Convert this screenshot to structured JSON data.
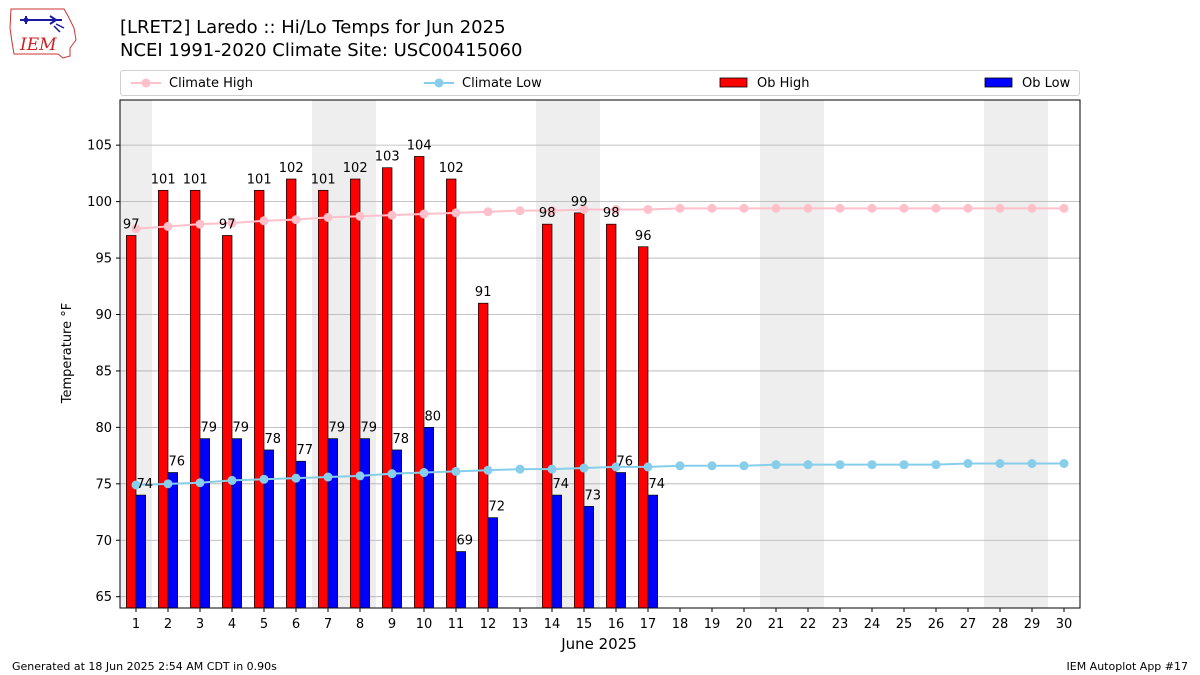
{
  "header": {
    "title": "[LRET2] Laredo :: Hi/Lo Temps for Jun 2025",
    "subtitle": "NCEI 1991-2020 Climate Site: USC00415060",
    "logo_text": "IEM"
  },
  "footer": {
    "left": "Generated at 18 Jun 2025 2:54 AM CDT in 0.90s",
    "right": "IEM Autoplot App #17"
  },
  "colors": {
    "ob_high": "#ff0000",
    "ob_low": "#0000ff",
    "climate_high": "#ffc0cb",
    "climate_low": "#87ceeb",
    "weekend_band": "#eeeeee",
    "grid": "#b0b0b0"
  },
  "chart_data": {
    "type": "bar",
    "xlabel": "June 2025",
    "ylabel": "Temperature °F",
    "ylim": [
      64,
      109
    ],
    "yticks": [
      65,
      70,
      75,
      80,
      85,
      90,
      95,
      100,
      105
    ],
    "grid": true,
    "legend_placement": "top",
    "x": [
      1,
      2,
      3,
      4,
      5,
      6,
      7,
      8,
      9,
      10,
      11,
      12,
      13,
      14,
      15,
      16,
      17,
      18,
      19,
      20,
      21,
      22,
      23,
      24,
      25,
      26,
      27,
      28,
      29,
      30
    ],
    "weekend_days": [
      1,
      7,
      8,
      14,
      15,
      21,
      22,
      28,
      29
    ],
    "series": [
      {
        "name": "Climate High",
        "kind": "line",
        "values": [
          97.6,
          97.8,
          98.0,
          98.1,
          98.3,
          98.4,
          98.6,
          98.7,
          98.8,
          98.9,
          99.0,
          99.1,
          99.2,
          99.2,
          99.3,
          99.3,
          99.3,
          99.4,
          99.4,
          99.4,
          99.4,
          99.4,
          99.4,
          99.4,
          99.4,
          99.4,
          99.4,
          99.4,
          99.4,
          99.4
        ]
      },
      {
        "name": "Climate Low",
        "kind": "line",
        "values": [
          74.9,
          75.0,
          75.1,
          75.3,
          75.4,
          75.5,
          75.6,
          75.7,
          75.9,
          76.0,
          76.1,
          76.2,
          76.3,
          76.3,
          76.4,
          76.5,
          76.5,
          76.6,
          76.6,
          76.6,
          76.7,
          76.7,
          76.7,
          76.7,
          76.7,
          76.7,
          76.8,
          76.8,
          76.8,
          76.8
        ]
      },
      {
        "name": "Ob High",
        "kind": "bar",
        "values": [
          97,
          101,
          101,
          97,
          101,
          102,
          101,
          102,
          103,
          104,
          102,
          91,
          null,
          98,
          99,
          98,
          96,
          null,
          null,
          null,
          null,
          null,
          null,
          null,
          null,
          null,
          null,
          null,
          null,
          null
        ]
      },
      {
        "name": "Ob Low",
        "kind": "bar",
        "values": [
          74,
          76,
          79,
          79,
          78,
          77,
          79,
          79,
          78,
          80,
          69,
          72,
          null,
          74,
          73,
          76,
          74,
          null,
          null,
          null,
          null,
          null,
          null,
          null,
          null,
          null,
          null,
          null,
          null,
          null
        ]
      }
    ]
  }
}
